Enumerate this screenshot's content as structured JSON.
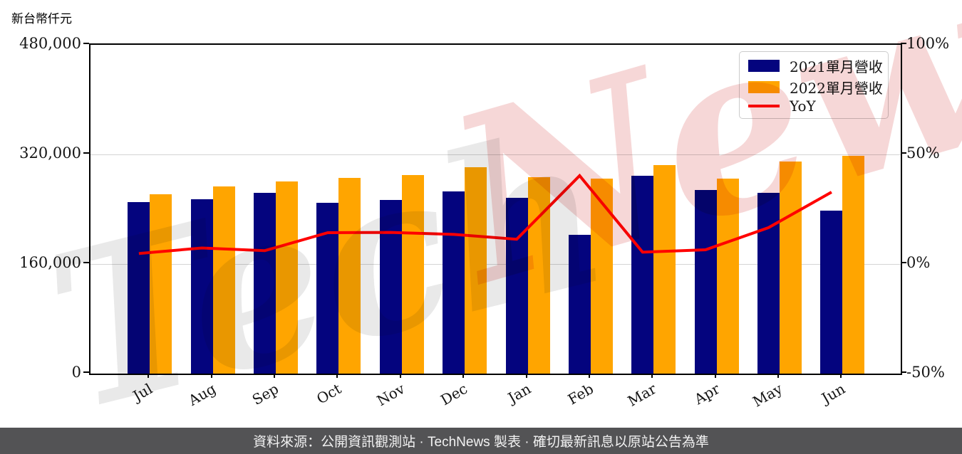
{
  "title": "新台幣仟元",
  "watermark": {
    "part1": "Tech",
    "part2": "News"
  },
  "footer": {
    "text": "資料來源：公開資訊觀測站 · TechNews 製表 · 確切最新訊息以原站公告為準"
  },
  "chart_data": {
    "type": "bar",
    "title": "新台幣仟元",
    "categories": [
      "Jul",
      "Aug",
      "Sep",
      "Oct",
      "Nov",
      "Dec",
      "Jan",
      "Feb",
      "Mar",
      "Apr",
      "May",
      "Jun"
    ],
    "series": [
      {
        "name": "2021單月營收",
        "type": "bar",
        "axis": "left",
        "color": "#04047e",
        "values": [
          250500,
          255000,
          263700,
          249800,
          253300,
          266100,
          256700,
          202900,
          288700,
          267900,
          263700,
          238400
        ]
      },
      {
        "name": "2022單月營收",
        "type": "bar",
        "axis": "left",
        "color": "#ffa500",
        "values": [
          261900,
          273100,
          280100,
          285300,
          289800,
          301600,
          286300,
          285000,
          304700,
          284500,
          309600,
          317600
        ]
      },
      {
        "name": "YoY",
        "type": "line",
        "axis": "right",
        "color": "#ff0000",
        "values": [
          4.8,
          7.3,
          6.1,
          14.3,
          14.4,
          13.5,
          11.3,
          40.3,
          5.4,
          6.5,
          16.6,
          32.8
        ]
      }
    ],
    "left_axis": {
      "unit_label": "新台幣仟元",
      "min": 0,
      "max": 480000,
      "ticks": [
        {
          "label": "480,000",
          "value": 480000
        },
        {
          "label": "320,000",
          "value": 320000
        },
        {
          "label": "160,000",
          "value": 160000
        },
        {
          "label": "0",
          "value": 0
        }
      ]
    },
    "right_axis": {
      "min": -50,
      "max": 100,
      "ticks": [
        {
          "label": "100%",
          "value": 100
        },
        {
          "label": "50%",
          "value": 50
        },
        {
          "label": "0%",
          "value": 0
        },
        {
          "label": "-50%",
          "value": -50
        }
      ]
    },
    "grid": true,
    "legend_position": "top-right"
  },
  "colors": {
    "grid": "#d4d4d4",
    "spine": "#000000",
    "footer_bg": "#535355"
  }
}
